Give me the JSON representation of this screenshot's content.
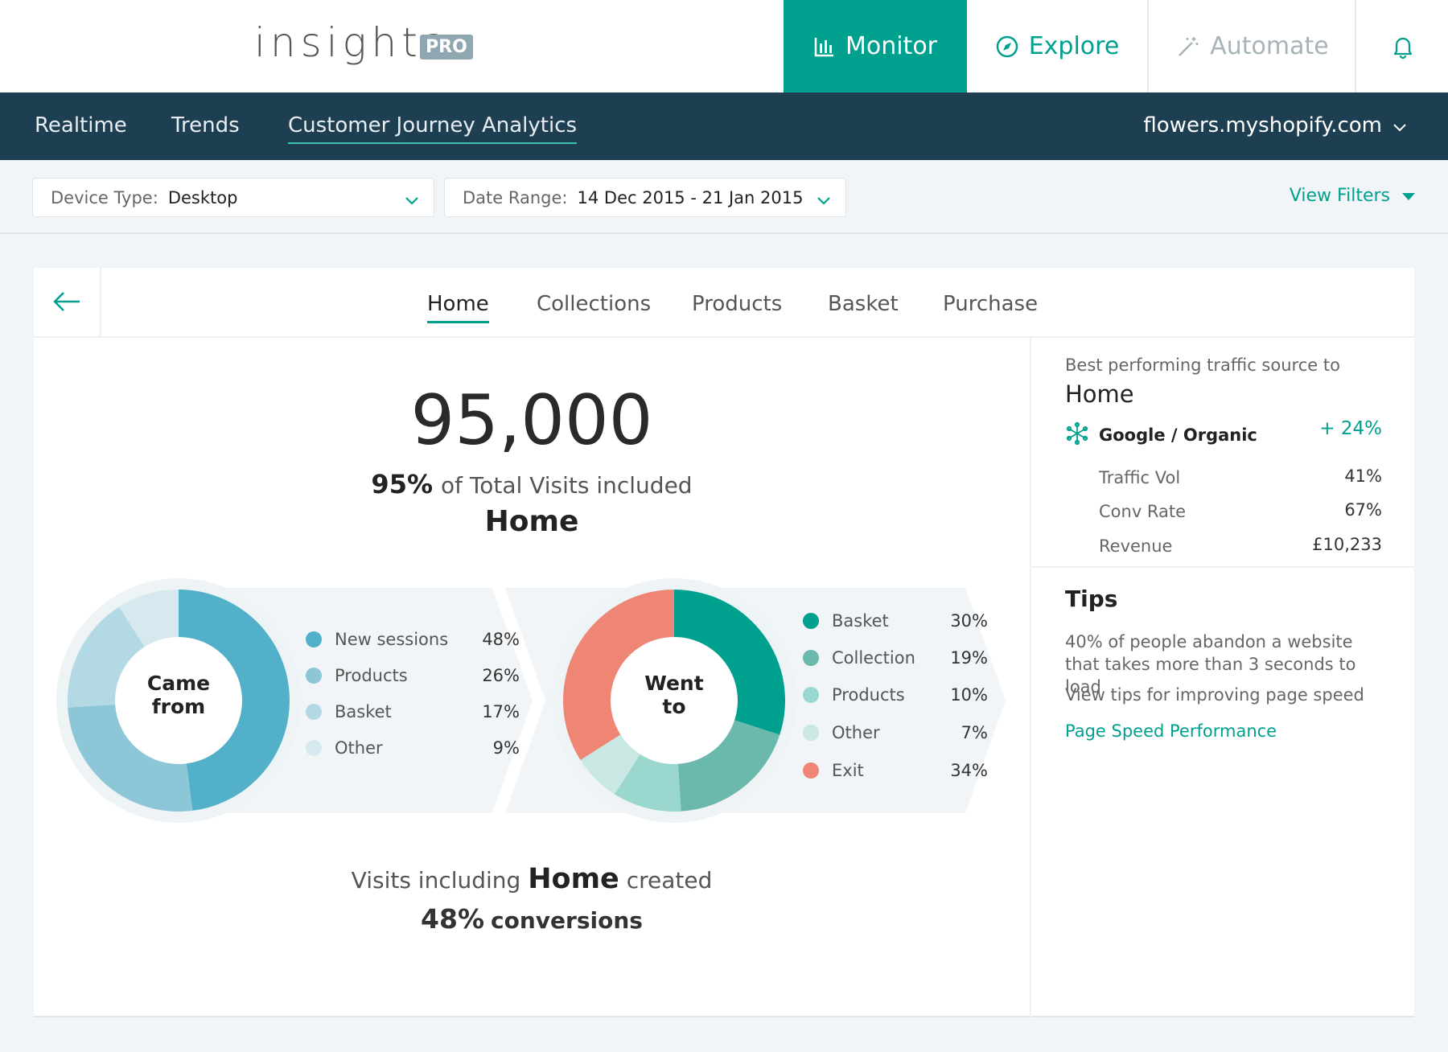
{
  "app": {
    "logo": "insights",
    "badge": "PRO"
  },
  "topnav": {
    "monitor": {
      "label": "Monitor",
      "icon": "bar-chart-icon"
    },
    "explore": {
      "label": "Explore",
      "icon": "compass-icon"
    },
    "automate": {
      "label": "Automate",
      "icon": "magic-wand-icon"
    },
    "bell": {
      "icon": "bell-icon"
    }
  },
  "subnav": {
    "items": [
      "Realtime",
      "Trends",
      "Customer Journey Analytics"
    ],
    "active": "Customer Journey Analytics",
    "store": "flowers.myshopify.com"
  },
  "filters": {
    "device": {
      "label": "Device Type:",
      "value": "Desktop"
    },
    "date": {
      "label": "Date Range:",
      "value": "14 Dec 2015 - 21 Jan 2015"
    },
    "view_filters": "View Filters"
  },
  "tabs": [
    "Home",
    "Collections",
    "Products",
    "Basket",
    "Purchase"
  ],
  "summary": {
    "visits": "95,000",
    "pct": "95%",
    "pct_text": "of Total Visits included",
    "page": "Home",
    "conv_pre": "Visits including",
    "conv_page": "Home",
    "conv_post": "created",
    "conv_pct": "48%",
    "conv_text": "conversions"
  },
  "came_from": {
    "label_line1": "Came",
    "label_line2": "from",
    "items": [
      {
        "label": "New sessions",
        "value": "48%",
        "pct": 48,
        "color": "#52b0c8"
      },
      {
        "label": "Products",
        "value": "26%",
        "pct": 26,
        "color": "#8cc6d7"
      },
      {
        "label": "Basket",
        "value": "17%",
        "pct": 17,
        "color": "#b3dae4"
      },
      {
        "label": "Other",
        "value": "9%",
        "pct": 9,
        "color": "#d6e9ef"
      }
    ]
  },
  "went_to": {
    "label_line1": "Went",
    "label_line2": "to",
    "items": [
      {
        "label": "Basket",
        "value": "30%",
        "pct": 30,
        "color": "#00a08f"
      },
      {
        "label": "Collection",
        "value": "19%",
        "pct": 19,
        "color": "#6bb8ac"
      },
      {
        "label": "Products",
        "value": "10%",
        "pct": 10,
        "color": "#9ad8cf"
      },
      {
        "label": "Other",
        "value": "7%",
        "pct": 7,
        "color": "#c9e8e4"
      },
      {
        "label": "Exit",
        "value": "34%",
        "pct": 34,
        "color": "#ef8574"
      }
    ]
  },
  "sidebar": {
    "subtitle": "Best  performing traffic source to",
    "title": "Home",
    "source": {
      "name": "Google / Organic",
      "delta": "+ 24%",
      "icon": "snowflake-icon"
    },
    "metrics": [
      {
        "label": "Traffic Vol",
        "value": "41%"
      },
      {
        "label": "Conv Rate",
        "value": "67%"
      },
      {
        "label": "Revenue",
        "value": "£10,233"
      }
    ],
    "tips_title": "Tips",
    "tips_text": "40% of people abandon a website that takes more than 3 seconds to load",
    "tips_text2": "View tips for improving page speed",
    "tips_link": "Page Speed Performance"
  }
}
